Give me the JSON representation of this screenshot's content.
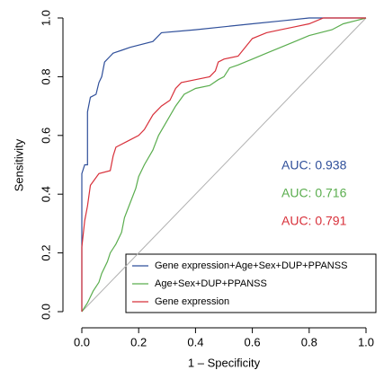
{
  "chart_data": {
    "type": "line",
    "xlabel": "1 – Specificity",
    "ylabel": "Sensitivity",
    "xlim": [
      0,
      1
    ],
    "ylim": [
      0,
      1
    ],
    "xticks": [
      {
        "value": 0,
        "label": "0.0"
      },
      0.2,
      0.4,
      0.6,
      0.8,
      {
        "value": 1,
        "label": "1.0"
      }
    ],
    "yticks": [
      {
        "value": 0,
        "label": "0.0"
      },
      0.2,
      0.4,
      0.6,
      0.8,
      {
        "value": 1,
        "label": "1.0"
      }
    ],
    "legend": "bottom-right",
    "diagonal_color": "#b0b0b0",
    "series": [
      {
        "name": "Gene expression+Age+Sex+DUP+PPANSS",
        "color": "#2f4f9a",
        "x": [
          0,
          0,
          0.01,
          0.02,
          0.02,
          0.03,
          0.05,
          0.06,
          0.07,
          0.08,
          0.1,
          0.11,
          0.14,
          0.17,
          0.25,
          0.28,
          0.4,
          0.5,
          0.6,
          0.7,
          0.8,
          1
        ],
        "values": [
          0,
          0.47,
          0.5,
          0.5,
          0.68,
          0.73,
          0.74,
          0.78,
          0.8,
          0.85,
          0.87,
          0.88,
          0.89,
          0.9,
          0.92,
          0.95,
          0.96,
          0.97,
          0.98,
          0.99,
          1,
          1
        ]
      },
      {
        "name": "Age+Sex+DUP+PPANSS",
        "color": "#5aad4e",
        "x": [
          0,
          0.02,
          0.04,
          0.06,
          0.07,
          0.09,
          0.1,
          0.12,
          0.14,
          0.15,
          0.17,
          0.19,
          0.2,
          0.22,
          0.25,
          0.27,
          0.3,
          0.33,
          0.36,
          0.4,
          0.45,
          0.48,
          0.5,
          0.52,
          0.55,
          0.6,
          0.65,
          0.7,
          0.75,
          0.8,
          0.88,
          0.92,
          0.96,
          1
        ],
        "values": [
          0,
          0.03,
          0.07,
          0.1,
          0.13,
          0.17,
          0.2,
          0.23,
          0.27,
          0.32,
          0.37,
          0.42,
          0.46,
          0.5,
          0.55,
          0.6,
          0.65,
          0.7,
          0.74,
          0.76,
          0.77,
          0.79,
          0.8,
          0.83,
          0.84,
          0.86,
          0.88,
          0.9,
          0.92,
          0.94,
          0.96,
          0.98,
          0.99,
          1
        ]
      },
      {
        "name": "Gene expression",
        "color": "#d8303a",
        "x": [
          0,
          0,
          0.01,
          0.02,
          0.03,
          0.06,
          0.1,
          0.11,
          0.12,
          0.16,
          0.2,
          0.22,
          0.25,
          0.28,
          0.31,
          0.33,
          0.35,
          0.4,
          0.45,
          0.47,
          0.48,
          0.5,
          0.55,
          0.6,
          0.65,
          0.7,
          0.75,
          0.8,
          0.85,
          1
        ],
        "values": [
          0,
          0.22,
          0.31,
          0.36,
          0.43,
          0.47,
          0.48,
          0.53,
          0.56,
          0.58,
          0.6,
          0.62,
          0.67,
          0.7,
          0.72,
          0.76,
          0.78,
          0.79,
          0.8,
          0.82,
          0.85,
          0.86,
          0.87,
          0.93,
          0.95,
          0.96,
          0.97,
          0.98,
          1,
          1
        ]
      }
    ],
    "annotations": [
      {
        "text": "AUC: 0.938",
        "color": "#2f4f9a"
      },
      {
        "text": "AUC: 0.716",
        "color": "#5aad4e"
      },
      {
        "text": "AUC: 0.791",
        "color": "#d8303a"
      }
    ]
  }
}
